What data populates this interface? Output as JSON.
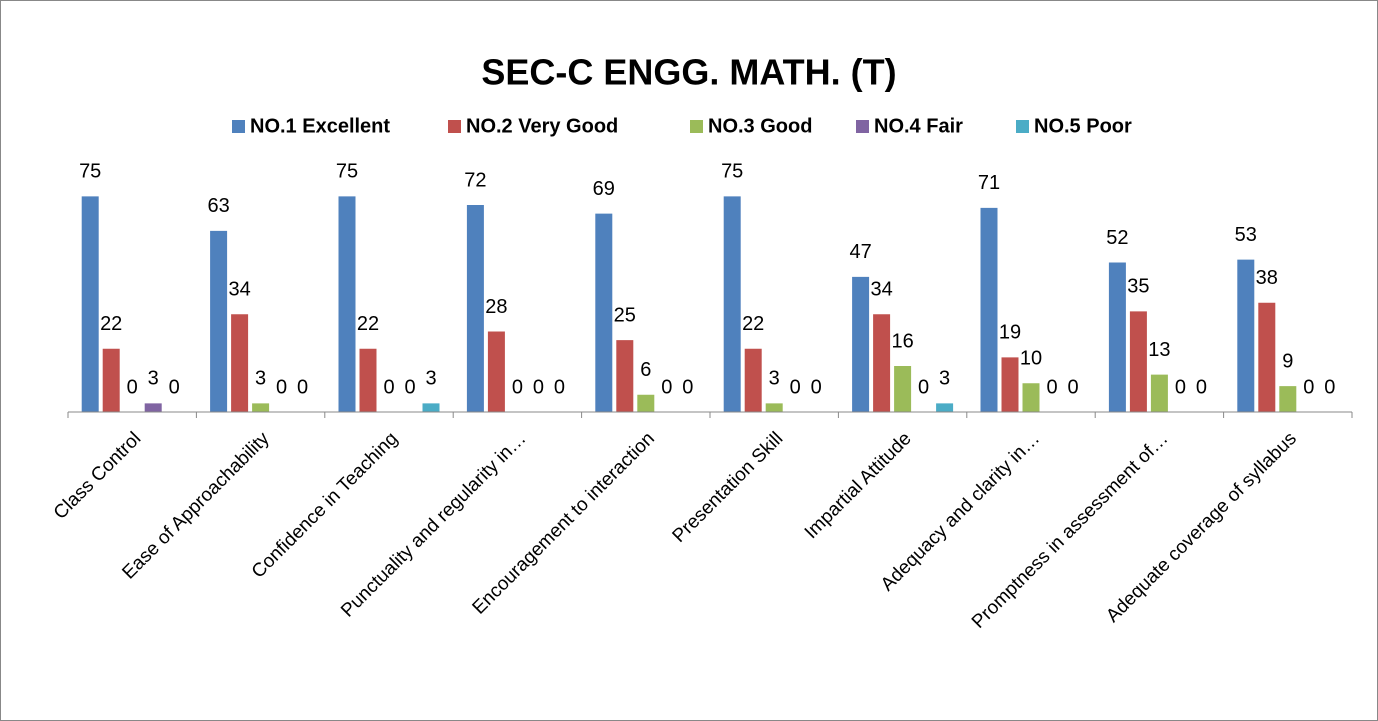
{
  "chart_data": {
    "type": "bar",
    "title": "SEC-C ENGG. MATH. (T)",
    "categories": [
      "Class Control",
      "Ease of Approachability",
      "Confidence in Teaching",
      "Punctuality and regularity in…",
      "Encouragement to interaction",
      "Presentation Skill",
      "Impartial Attitude",
      "Adequacy and clarity in…",
      "Promptness in assessment of…",
      "Adequate coverage of syllabus"
    ],
    "series": [
      {
        "name": "NO.1 Excellent",
        "color": "#4f81bd",
        "values": [
          75,
          63,
          75,
          72,
          69,
          75,
          47,
          71,
          52,
          53
        ]
      },
      {
        "name": "NO.2 Very Good",
        "color": "#c0504d",
        "values": [
          22,
          34,
          22,
          28,
          25,
          22,
          34,
          19,
          35,
          38
        ]
      },
      {
        "name": "NO.3 Good",
        "color": "#9bbb59",
        "values": [
          0,
          3,
          0,
          0,
          6,
          3,
          16,
          10,
          13,
          9
        ]
      },
      {
        "name": "NO.4 Fair",
        "color": "#8064a2",
        "values": [
          3,
          0,
          0,
          0,
          0,
          0,
          0,
          0,
          0,
          0
        ]
      },
      {
        "name": "NO.5 Poor",
        "color": "#4bacc6",
        "values": [
          0,
          0,
          3,
          0,
          0,
          0,
          3,
          0,
          0,
          0
        ]
      }
    ],
    "ylim": [
      0,
      80
    ],
    "legend": "top"
  }
}
